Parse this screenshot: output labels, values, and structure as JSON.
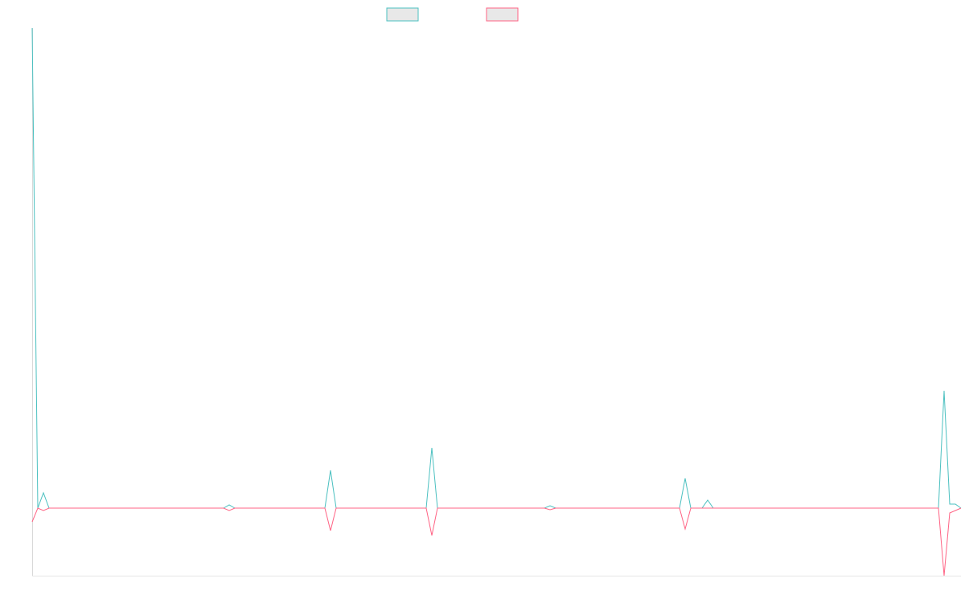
{
  "chart_data": {
    "type": "line",
    "x": [
      0,
      1,
      2,
      3,
      34,
      35,
      36,
      52,
      53,
      54,
      70,
      71,
      72,
      91,
      92,
      93,
      115,
      116,
      117,
      119,
      120,
      121,
      161,
      162,
      163,
      164,
      165
    ],
    "series": [
      {
        "color": "#4bc0c0",
        "values": [
          597,
          0,
          19,
          0,
          0,
          4,
          0,
          0,
          47,
          0,
          0,
          75,
          0,
          0,
          3,
          0,
          0,
          37,
          0,
          0,
          10,
          0,
          0,
          146,
          5,
          5,
          0
        ]
      },
      {
        "color": "#ff6384",
        "values": [
          -17,
          0,
          -3,
          0,
          0,
          -3,
          0,
          0,
          -28,
          0,
          0,
          -34,
          0,
          0,
          -2,
          0,
          0,
          -26,
          0,
          0,
          0,
          0,
          0,
          -84,
          -6,
          -3,
          0
        ]
      }
    ],
    "xlim": [
      0,
      165
    ],
    "ylim": [
      -84,
      597
    ],
    "legend": "top"
  }
}
